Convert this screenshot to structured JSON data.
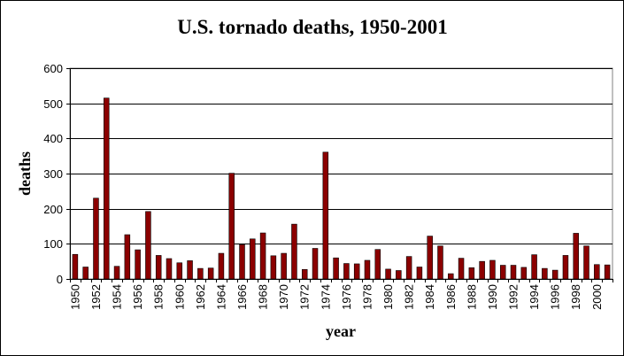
{
  "chart_data": {
    "type": "bar",
    "title": "U.S. tornado deaths, 1950-2001",
    "xlabel": "year",
    "ylabel": "deaths",
    "ylim": [
      0,
      600
    ],
    "yticks": [
      0,
      100,
      200,
      300,
      400,
      500,
      600
    ],
    "grid": true,
    "legend": "none",
    "bar_color": "#8b0000",
    "categories": [
      "1950",
      "1951",
      "1952",
      "1953",
      "1954",
      "1955",
      "1956",
      "1957",
      "1958",
      "1959",
      "1960",
      "1961",
      "1962",
      "1963",
      "1964",
      "1965",
      "1966",
      "1967",
      "1968",
      "1969",
      "1970",
      "1971",
      "1972",
      "1973",
      "1974",
      "1975",
      "1976",
      "1977",
      "1978",
      "1979",
      "1980",
      "1981",
      "1982",
      "1983",
      "1984",
      "1985",
      "1986",
      "1987",
      "1988",
      "1989",
      "1990",
      "1991",
      "1992",
      "1993",
      "1994",
      "1995",
      "1996",
      "1997",
      "1998",
      "1999",
      "2000",
      "2001"
    ],
    "tick_labels": [
      "1950",
      "1952",
      "1954",
      "1956",
      "1958",
      "1960",
      "1962",
      "1964",
      "1966",
      "1968",
      "1970",
      "1972",
      "1974",
      "1976",
      "1978",
      "1980",
      "1982",
      "1984",
      "1986",
      "1988",
      "1990",
      "1992",
      "1994",
      "1996",
      "1998",
      "2000"
    ],
    "values": [
      70,
      34,
      230,
      515,
      36,
      126,
      83,
      192,
      67,
      58,
      46,
      52,
      30,
      31,
      73,
      301,
      98,
      114,
      131,
      66,
      73,
      156,
      27,
      87,
      361,
      60,
      44,
      43,
      53,
      84,
      28,
      24,
      64,
      34,
      122,
      94,
      15,
      59,
      32,
      50,
      53,
      39,
      39,
      33,
      69,
      30,
      25,
      67,
      130,
      94,
      41,
      40
    ]
  }
}
